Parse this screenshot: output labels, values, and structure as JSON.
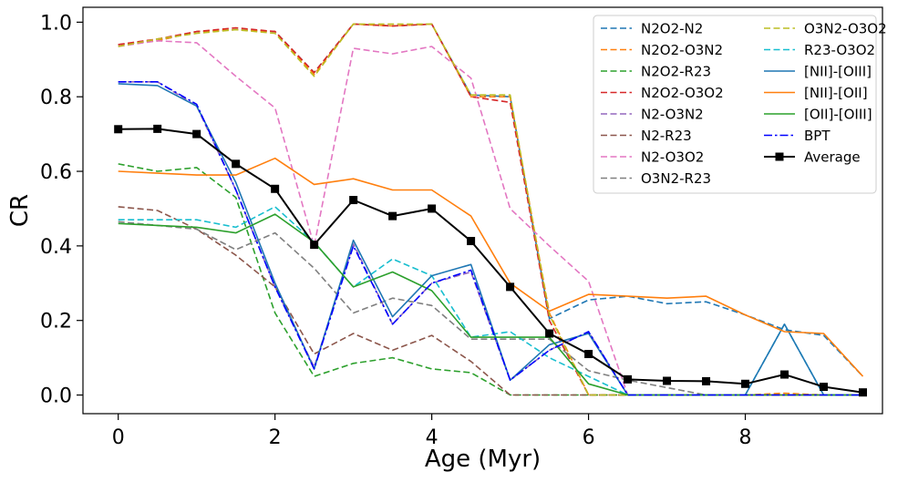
{
  "chart_data": {
    "type": "line",
    "title": "",
    "xlabel": "Age (Myr)",
    "ylabel": "CR",
    "xlim": [
      -0.45,
      9.75
    ],
    "ylim": [
      -0.05,
      1.04
    ],
    "xticks": [
      0,
      2,
      4,
      6,
      8
    ],
    "yticks": [
      0.0,
      0.2,
      0.4,
      0.6,
      0.8,
      1.0
    ],
    "xtick_labels": [
      "0",
      "2",
      "4",
      "6",
      "8"
    ],
    "ytick_labels": [
      "0.0",
      "0.2",
      "0.4",
      "0.6",
      "0.8",
      "1.0"
    ],
    "x": [
      0,
      0.5,
      1,
      1.5,
      2,
      2.5,
      3,
      3.5,
      4,
      4.5,
      5,
      5.5,
      6,
      6.5,
      7,
      7.5,
      8,
      8.5,
      9,
      9.5
    ],
    "legend_position": "upper right",
    "series": [
      {
        "name": "N2O2-N2",
        "color": "#1f77b4",
        "dash": "dashed",
        "marker": "none",
        "values": [
          0.94,
          0.95,
          0.975,
          0.98,
          0.975,
          0.865,
          0.995,
          0.99,
          0.995,
          0.805,
          0.8,
          0.205,
          0.255,
          0.265,
          0.245,
          0.25,
          0.215,
          0.175,
          0.16,
          0.05
        ]
      },
      {
        "name": "N2O2-O3N2",
        "color": "#ff7f0e",
        "dash": "dashed",
        "marker": "none",
        "values": [
          0.94,
          0.95,
          0.975,
          0.98,
          0.975,
          0.86,
          0.995,
          0.99,
          0.995,
          0.8,
          0.8,
          0.22,
          0.0,
          0.0,
          0.0,
          0.0,
          0.0,
          0.005,
          0.0,
          0.0
        ]
      },
      {
        "name": "N2O2-R23",
        "color": "#2ca02c",
        "dash": "dashed",
        "marker": "none",
        "values": [
          0.62,
          0.6,
          0.61,
          0.53,
          0.22,
          0.05,
          0.085,
          0.1,
          0.07,
          0.06,
          0.0,
          0.0,
          0.0,
          0.0,
          0.0,
          0.0,
          0.0,
          0.0,
          0.0,
          0.0
        ]
      },
      {
        "name": "N2O2-O3O2",
        "color": "#d62728",
        "dash": "dashed",
        "marker": "none",
        "values": [
          0.94,
          0.955,
          0.975,
          0.985,
          0.975,
          0.865,
          0.995,
          0.99,
          0.995,
          0.8,
          0.785,
          0.2,
          0.0,
          0.0,
          0.0,
          0.0,
          0.0,
          0.0,
          0.0,
          0.0
        ]
      },
      {
        "name": "N2-O3N2",
        "color": "#9467bd",
        "dash": "dashed",
        "marker": "none",
        "values": [
          0.84,
          0.84,
          0.775,
          0.55,
          0.29,
          0.075,
          0.405,
          0.19,
          0.3,
          0.33,
          0.04,
          0.12,
          0.17,
          0.0,
          0.0,
          0.0,
          0.0,
          0.0,
          0.0,
          0.0
        ]
      },
      {
        "name": "N2-R23",
        "color": "#8c564b",
        "dash": "dashed",
        "marker": "none",
        "values": [
          0.505,
          0.495,
          0.445,
          0.375,
          0.29,
          0.11,
          0.165,
          0.12,
          0.16,
          0.09,
          0.0,
          0.0,
          0.0,
          0.0,
          0.0,
          0.0,
          0.0,
          0.0,
          0.0,
          0.0
        ]
      },
      {
        "name": "N2-O3O2",
        "color": "#e377c2",
        "dash": "dashed",
        "marker": "none",
        "values": [
          0.935,
          0.95,
          0.945,
          0.855,
          0.77,
          0.4,
          0.93,
          0.915,
          0.935,
          0.85,
          0.5,
          0.4,
          0.305,
          0.0,
          0.0,
          0.0,
          0.0,
          0.0,
          0.0,
          0.0
        ]
      },
      {
        "name": "O3N2-R23",
        "color": "#7f7f7f",
        "dash": "dashed",
        "marker": "none",
        "values": [
          0.465,
          0.455,
          0.445,
          0.39,
          0.435,
          0.34,
          0.22,
          0.26,
          0.24,
          0.15,
          0.15,
          0.15,
          0.065,
          0.04,
          0.02,
          0.0,
          0.0,
          0.0,
          0.0,
          0.0
        ]
      },
      {
        "name": "O3N2-O3O2",
        "color": "#bcbd22",
        "dash": "dashed",
        "marker": "none",
        "values": [
          0.935,
          0.955,
          0.97,
          0.98,
          0.97,
          0.855,
          0.995,
          0.995,
          0.995,
          0.805,
          0.805,
          0.215,
          0.0,
          0.0,
          0.0,
          0.0,
          0.0,
          0.0,
          0.0,
          0.0
        ]
      },
      {
        "name": "R23-O3O2",
        "color": "#17becf",
        "dash": "dashed",
        "marker": "none",
        "values": [
          0.47,
          0.47,
          0.47,
          0.45,
          0.505,
          0.41,
          0.29,
          0.365,
          0.32,
          0.155,
          0.17,
          0.1,
          0.05,
          0.0,
          0.0,
          0.0,
          0.0,
          0.19,
          0.0,
          0.0
        ]
      },
      {
        "name": "[NII]-[OIII]",
        "color": "#1f77b4",
        "dash": "solid",
        "marker": "none",
        "values": [
          0.835,
          0.83,
          0.775,
          0.57,
          0.3,
          0.07,
          0.415,
          0.21,
          0.32,
          0.35,
          0.04,
          0.135,
          0.165,
          0.0,
          0.0,
          0.0,
          0.0,
          0.19,
          0.0,
          0.0
        ]
      },
      {
        "name": "[NII]-[OII]",
        "color": "#ff7f0e",
        "dash": "solid",
        "marker": "none",
        "values": [
          0.6,
          0.595,
          0.59,
          0.59,
          0.635,
          0.565,
          0.58,
          0.55,
          0.55,
          0.48,
          0.3,
          0.225,
          0.27,
          0.265,
          0.26,
          0.265,
          0.215,
          0.17,
          0.165,
          0.05
        ]
      },
      {
        "name": "[OII]-[OIII]",
        "color": "#2ca02c",
        "dash": "solid",
        "marker": "none",
        "values": [
          0.46,
          0.455,
          0.45,
          0.435,
          0.485,
          0.41,
          0.29,
          0.33,
          0.28,
          0.155,
          0.155,
          0.155,
          0.03,
          0.0,
          0.0,
          0.0,
          0.0,
          0.0,
          0.0,
          0.0
        ]
      },
      {
        "name": "BPT",
        "color": "#0000ff",
        "dash": "dashdot",
        "marker": "none",
        "values": [
          0.84,
          0.84,
          0.78,
          0.55,
          0.29,
          0.07,
          0.4,
          0.19,
          0.3,
          0.335,
          0.04,
          0.12,
          0.17,
          0.0,
          0.0,
          0.0,
          0.0,
          0.0,
          0.0,
          0.0
        ]
      },
      {
        "name": "Average",
        "color": "#000000",
        "dash": "solid",
        "marker": "square",
        "values": [
          0.713,
          0.714,
          0.7,
          0.62,
          0.553,
          0.403,
          0.523,
          0.48,
          0.5,
          0.413,
          0.29,
          0.165,
          0.11,
          0.042,
          0.038,
          0.037,
          0.03,
          0.055,
          0.022,
          0.007
        ]
      }
    ]
  }
}
